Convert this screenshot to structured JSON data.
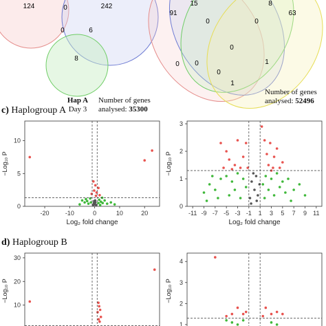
{
  "venn_left": {
    "counts": {
      "top_left": "124",
      "top_mid": "0",
      "top_right": "242",
      "mid_left": "0",
      "mid_right": "6",
      "bottom": "8"
    },
    "label_title": "Hap A",
    "label_sub": "Day 3",
    "genes_line1": "Number of genes",
    "genes_line2_prefix": "analysed: ",
    "genes_count": "35300"
  },
  "venn_right": {
    "counts": {
      "a": "91",
      "b": "15",
      "c": "8",
      "d": "63",
      "e": "0",
      "f": "0",
      "g": "0",
      "h": "0",
      "i": "0",
      "j": "0",
      "k": "1",
      "l": "1"
    },
    "genes_line1": "Number of genes",
    "genes_line2_prefix": "analysed: ",
    "genes_count": "52496"
  },
  "section_c": {
    "letter": "c)",
    "title": "Haplogroup A"
  },
  "section_d": {
    "letter": "d)",
    "title": "Haplogroup B"
  },
  "chart_data": [
    {
      "type": "scatter",
      "title": "",
      "xlabel": "Log₂ fold change",
      "ylabel": "−Log₁₀ P",
      "xticks": [
        "-20",
        "-10",
        "0",
        "10",
        "20"
      ],
      "yticks": [
        "0",
        "5",
        "10"
      ],
      "xlim": [
        -28,
        26
      ],
      "ylim": [
        0,
        13
      ],
      "series": [
        {
          "color": "#e8534f",
          "points": [
            [
              -26,
              7.5
            ],
            [
              23,
              8.5
            ],
            [
              20,
              7
            ],
            [
              -0.5,
              3.8
            ],
            [
              0.3,
              3.2
            ],
            [
              1.5,
              2.8
            ],
            [
              -0.2,
              2.4
            ],
            [
              0.8,
              2.1
            ],
            [
              -1.2,
              1.9
            ],
            [
              2,
              1.7
            ],
            [
              0.5,
              1.6
            ]
          ]
        },
        {
          "color": "#3fb83a",
          "points": [
            [
              -6,
              0.3
            ],
            [
              -4,
              0.6
            ],
            [
              -3,
              0.8
            ],
            [
              -2.5,
              0.4
            ],
            [
              -1.8,
              1.2
            ],
            [
              1.8,
              1.0
            ],
            [
              2.5,
              0.7
            ],
            [
              3.2,
              0.5
            ],
            [
              4,
              0.9
            ],
            [
              5,
              0.4
            ],
            [
              6.5,
              0.6
            ],
            [
              8,
              0.3
            ],
            [
              -5,
              0.9
            ],
            [
              3,
              1.3
            ],
            [
              -3.5,
              1.1
            ],
            [
              2.2,
              0.2
            ],
            [
              -1.5,
              0.6
            ],
            [
              1.5,
              0.5
            ]
          ]
        },
        {
          "color": "#555555",
          "points": [
            [
              -0.6,
              0.2
            ],
            [
              -0.3,
              0.5
            ],
            [
              0,
              0.3
            ],
            [
              0.3,
              0.6
            ],
            [
              0.6,
              0.2
            ],
            [
              -0.2,
              0.8
            ],
            [
              0.2,
              0.9
            ]
          ]
        }
      ],
      "thresholds": {
        "x": [
          -1,
          1
        ],
        "y": 1.3
      }
    },
    {
      "type": "scatter",
      "title": "",
      "xlabel": "Log₂ fold change",
      "ylabel": "−Log₁₀ P",
      "xticks": [
        "-11",
        "-9",
        "-7",
        "-5",
        "-3",
        "-1",
        "1",
        "3",
        "5",
        "7",
        "9",
        "11"
      ],
      "yticks": [
        "0",
        "1",
        "2",
        "3"
      ],
      "xlim": [
        -12,
        12
      ],
      "ylim": [
        0,
        3.1
      ],
      "series": [
        {
          "color": "#e8534f",
          "points": [
            [
              -6,
              2.3
            ],
            [
              -5,
              2.0
            ],
            [
              -4.5,
              1.7
            ],
            [
              -3.5,
              1.5
            ],
            [
              -2.5,
              1.4
            ],
            [
              -2,
              1.8
            ],
            [
              -1.5,
              2.3
            ],
            [
              -1.2,
              1.4
            ],
            [
              -5.5,
              1.4
            ],
            [
              -3,
              2.4
            ],
            [
              1.3,
              2.9
            ],
            [
              1.8,
              2.4
            ],
            [
              2.2,
              1.9
            ],
            [
              2.5,
              1.5
            ],
            [
              3,
              1.3
            ],
            [
              3.5,
              1.8
            ],
            [
              4,
              2.1
            ],
            [
              4.5,
              1.4
            ],
            [
              5,
              1.6
            ],
            [
              2.8,
              2.3
            ],
            [
              3.3,
              1.4
            ],
            [
              -4,
              1.35
            ]
          ]
        },
        {
          "color": "#3fb83a",
          "points": [
            [
              -9,
              0.5
            ],
            [
              -8,
              0.8
            ],
            [
              -7,
              0.6
            ],
            [
              -6,
              1.0
            ],
            [
              -5,
              1.1
            ],
            [
              -4,
              0.9
            ],
            [
              -3,
              1.2
            ],
            [
              -2,
              1.0
            ],
            [
              -1.5,
              0.7
            ],
            [
              -6.5,
              0.3
            ],
            [
              -7.5,
              1.1
            ],
            [
              -4.5,
              0.4
            ],
            [
              -3.5,
              0.6
            ],
            [
              -2.5,
              0.3
            ],
            [
              1.5,
              0.8
            ],
            [
              2,
              1.1
            ],
            [
              2.5,
              0.6
            ],
            [
              3,
              1.0
            ],
            [
              3.5,
              0.4
            ],
            [
              4,
              1.2
            ],
            [
              4.5,
              0.7
            ],
            [
              5,
              0.9
            ],
            [
              5.5,
              0.5
            ],
            [
              6,
              1.0
            ],
            [
              7,
              0.6
            ],
            [
              8,
              0.8
            ],
            [
              9,
              0.4
            ],
            [
              6.5,
              0.2
            ],
            [
              -8.5,
              0.2
            ],
            [
              1.8,
              0.3
            ]
          ]
        },
        {
          "color": "#555555",
          "points": [
            [
              -0.8,
              0.3
            ],
            [
              -0.5,
              0.9
            ],
            [
              -0.2,
              1.2
            ],
            [
              0,
              0.6
            ],
            [
              0.3,
              1.1
            ],
            [
              0.6,
              0.4
            ],
            [
              0.9,
              0.8
            ],
            [
              -0.6,
              0.1
            ],
            [
              0.4,
              0.2
            ]
          ]
        }
      ],
      "thresholds": {
        "x": [
          -1,
          1
        ],
        "y": 1.3
      }
    },
    {
      "type": "scatter",
      "title": "",
      "xlabel": "",
      "ylabel": "−Log₁₀ P",
      "xticks": [],
      "yticks": [
        "10",
        "20",
        "30"
      ],
      "xlim": [
        -28,
        26
      ],
      "ylim": [
        0,
        32
      ],
      "series": [
        {
          "color": "#e8534f",
          "points": [
            [
              -26,
              11.5
            ],
            [
              24,
              25
            ],
            [
              1.5,
              11
            ],
            [
              1.8,
              9.5
            ],
            [
              2.2,
              8
            ],
            [
              1.2,
              7
            ],
            [
              2.5,
              5
            ],
            [
              1.6,
              4
            ],
            [
              2,
              3
            ]
          ]
        }
      ],
      "thresholds": {
        "x": [
          -1,
          1
        ],
        "y": 1.3
      }
    },
    {
      "type": "scatter",
      "title": "",
      "xlabel": "",
      "ylabel": "−Log₁₀ P",
      "xticks": [],
      "yticks": [
        "1",
        "2",
        "3",
        "4"
      ],
      "xlim": [
        -12,
        12
      ],
      "ylim": [
        0.8,
        4.4
      ],
      "series": [
        {
          "color": "#e8534f",
          "points": [
            [
              -7,
              4.2
            ],
            [
              -3,
              1.8
            ],
            [
              -2,
              1.5
            ],
            [
              -4,
              1.5
            ],
            [
              3,
              1.5
            ],
            [
              2,
              1.8
            ],
            [
              4,
              1.6
            ],
            [
              5,
              1.5
            ],
            [
              -1.5,
              1.6
            ],
            [
              1.5,
              1.4
            ],
            [
              -5,
              1.4
            ]
          ]
        },
        {
          "color": "#3fb83a",
          "points": [
            [
              -5,
              1.2
            ],
            [
              -4,
              1.1
            ],
            [
              -3,
              1.0
            ],
            [
              -2,
              1.2
            ],
            [
              3,
              1.1
            ],
            [
              4,
              1.0
            ]
          ]
        }
      ],
      "thresholds": {
        "x": [
          -1,
          1
        ],
        "y": 1.3
      }
    }
  ]
}
